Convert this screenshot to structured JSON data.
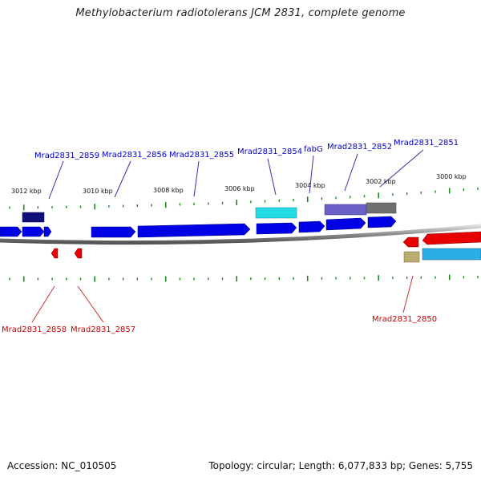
{
  "title": "Methylobacterium radiotolerans JCM 2831, complete genome",
  "footer": {
    "accession": "Accession: NC_010505",
    "summary": "Topology: circular; Length: 6,077,833 bp; Genes: 5,755"
  },
  "scale_labels": [
    "3012 kbp",
    "3010 kbp",
    "3008 kbp",
    "3006 kbp",
    "3004 kbp",
    "3002 kbp",
    "3000 kbp"
  ],
  "gene_labels_top": [
    "Mrad2831_2859",
    "Mrad2831_2856",
    "Mrad2831_2855",
    "Mrad2831_2854",
    "fabG",
    "Mrad2831_2852",
    "Mrad2831_2851"
  ],
  "gene_labels_bottom": [
    "Mrad2831_2858",
    "Mrad2831_2857",
    "Mrad2831_2850"
  ],
  "colors": {
    "forward_gene": "#0000e6",
    "reverse_gene": "#e60000",
    "forward_label": "#0000cc",
    "reverse_label": "#cc0000",
    "tick": "#1a8a1a",
    "backbone": "#999999"
  }
}
